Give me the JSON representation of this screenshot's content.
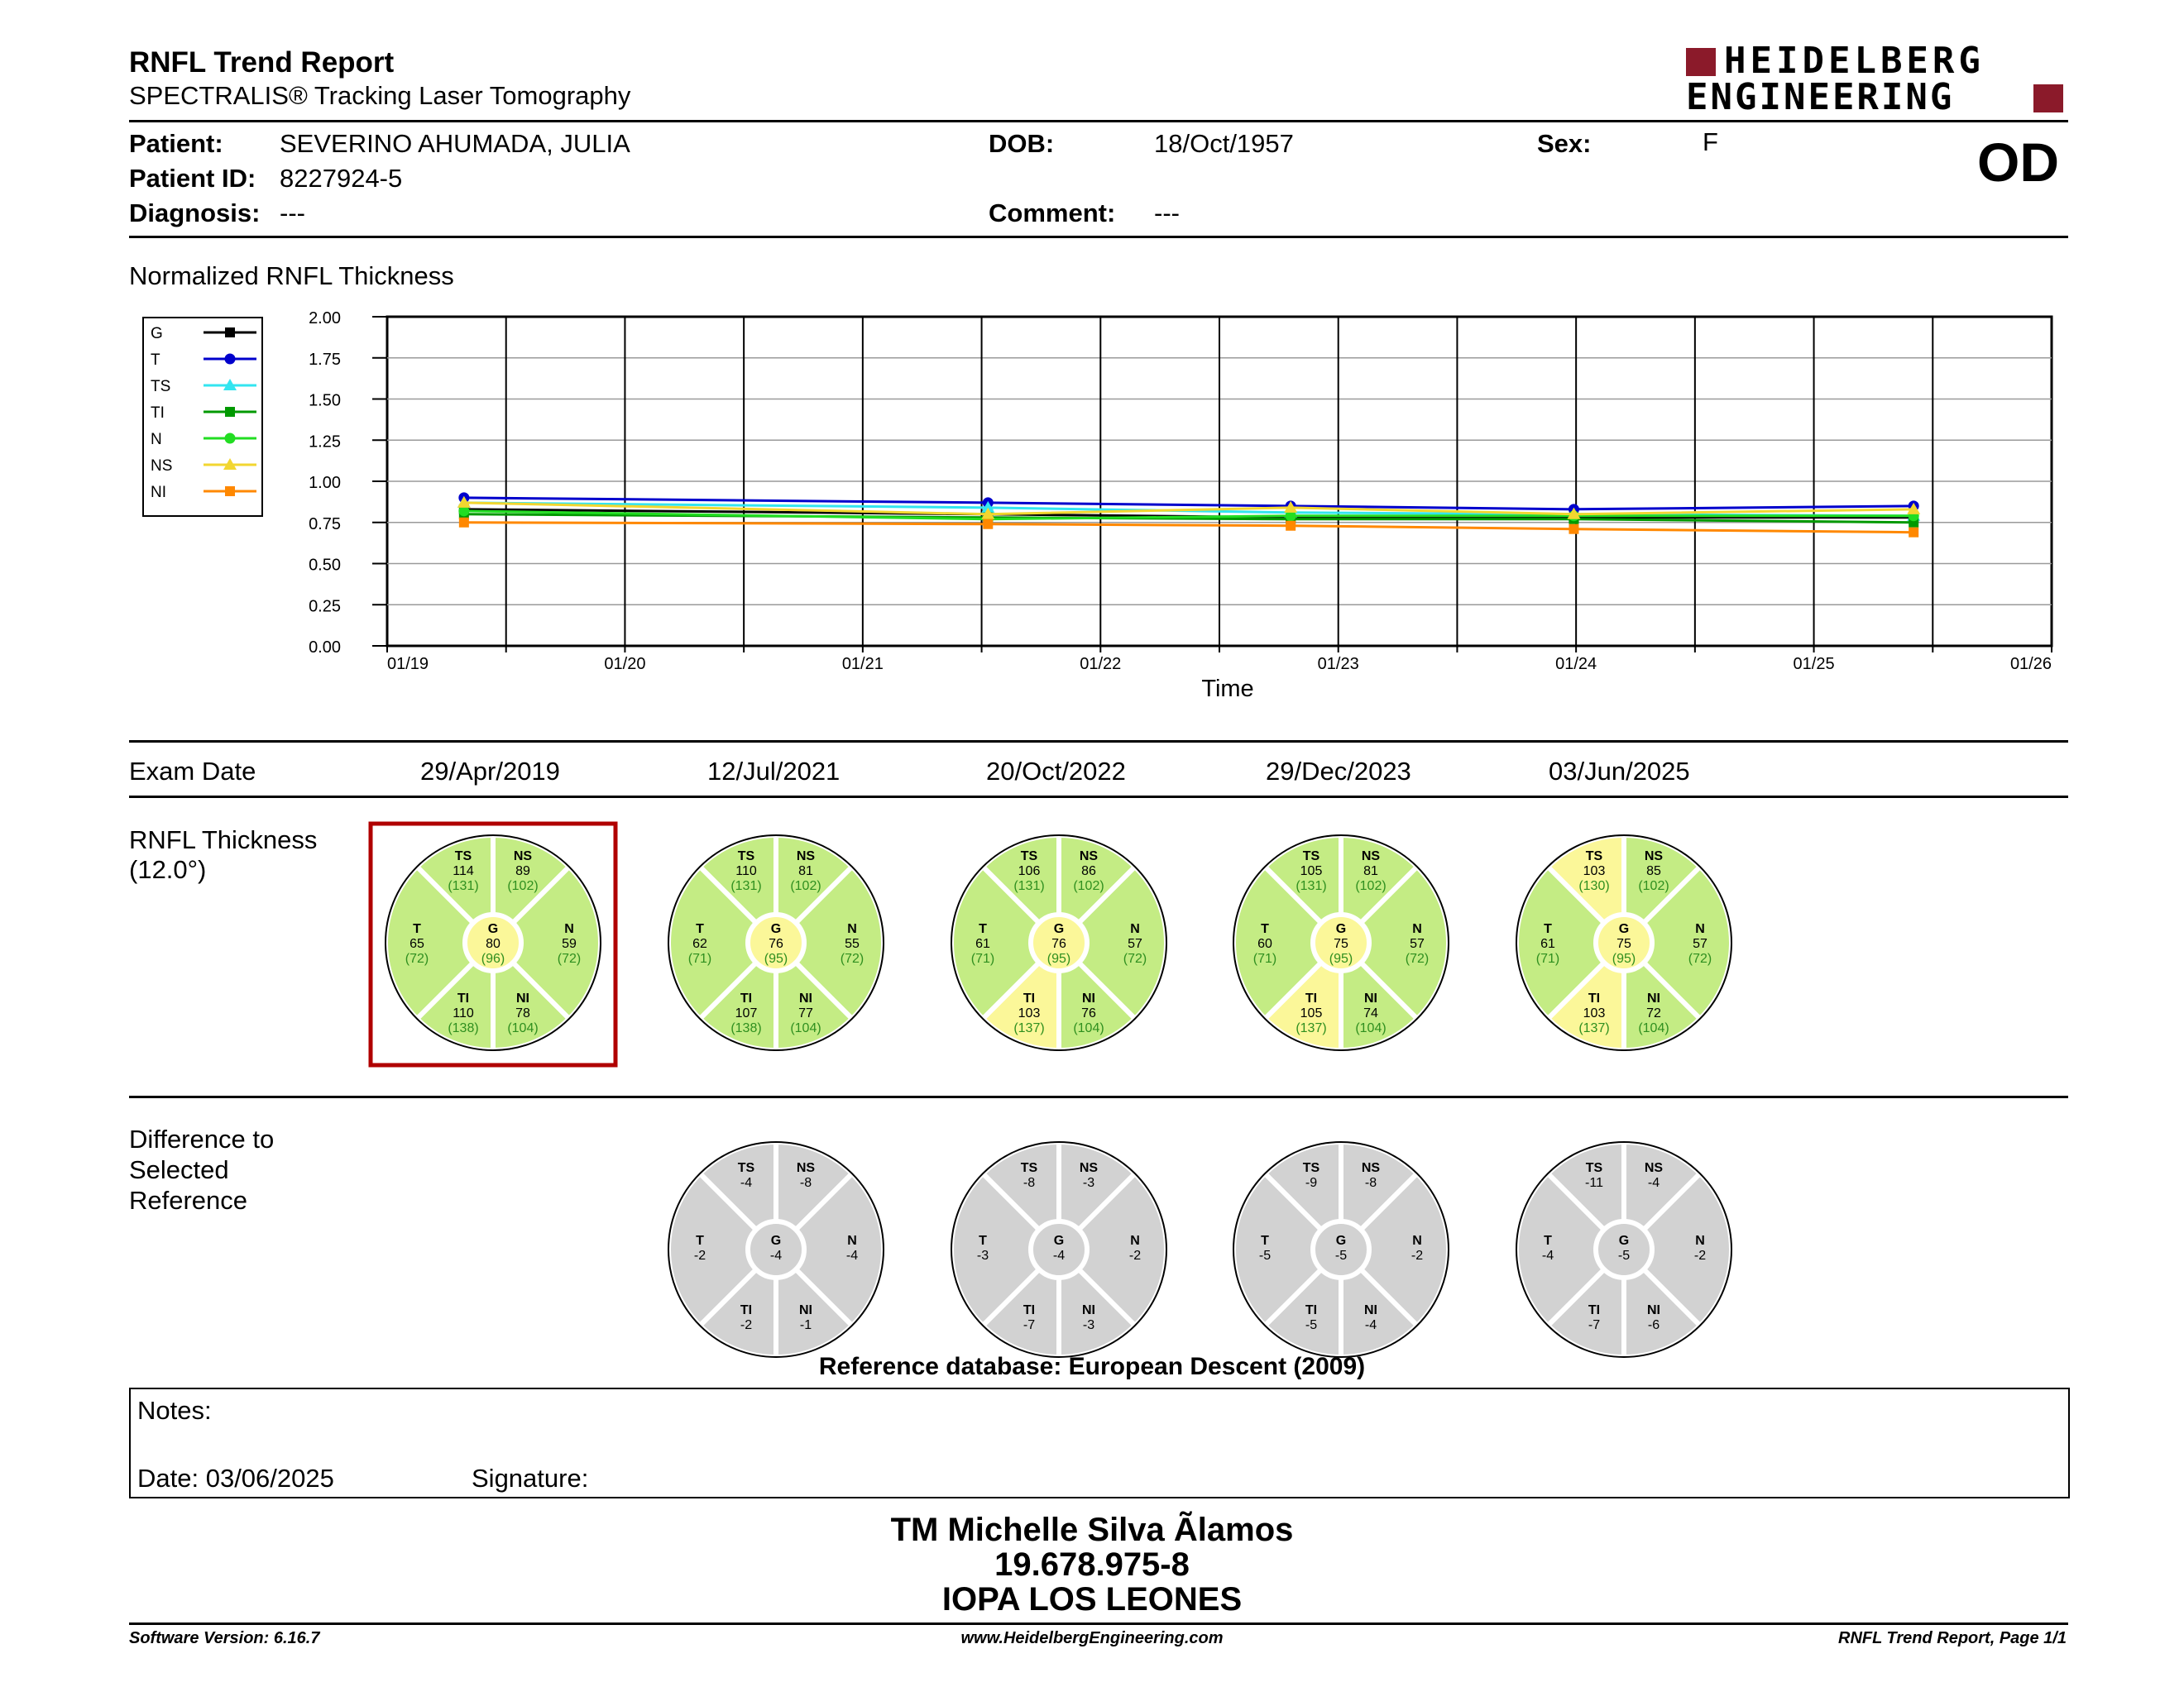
{
  "header": {
    "title": "RNFL Trend Report",
    "subtitle": "SPECTRALIS® Tracking Laser Tomography",
    "logo_line1": "HEIDELBERG",
    "logo_line2": "ENGINEERING",
    "eye": "OD"
  },
  "patient": {
    "patient_label": "Patient:",
    "patient_value": "SEVERINO AHUMADA, JULIA",
    "id_label": "Patient ID:",
    "id_value": "8227924-5",
    "diagnosis_label": "Diagnosis:",
    "diagnosis_value": "---",
    "dob_label": "DOB:",
    "dob_value": "18/Oct/1957",
    "comment_label": "Comment:",
    "comment_value": "---",
    "sex_label": "Sex:",
    "sex_value": "F"
  },
  "chart_data": {
    "type": "line",
    "title": "Normalized RNFL Thickness",
    "xlabel": "Time",
    "ylabel": "",
    "ylim": [
      0,
      2.0
    ],
    "yticks": [
      "0.00",
      "0.25",
      "0.50",
      "0.75",
      "1.00",
      "1.25",
      "1.50",
      "1.75",
      "2.00"
    ],
    "xticks": [
      "01/19",
      "01/20",
      "01/21",
      "01/22",
      "01/23",
      "01/24",
      "01/25",
      "01/26"
    ],
    "x": [
      "29/Apr/2019",
      "12/Jul/2021",
      "20/Oct/2022",
      "29/Dec/2023",
      "03/Jun/2025"
    ],
    "legend_position": "left",
    "grid": true,
    "series": [
      {
        "name": "G",
        "color": "#000000",
        "marker": "square",
        "values": [
          0.83,
          0.8,
          0.78,
          0.78,
          0.78
        ]
      },
      {
        "name": "T",
        "color": "#0000cc",
        "marker": "circle",
        "values": [
          0.9,
          0.87,
          0.85,
          0.83,
          0.85
        ]
      },
      {
        "name": "TS",
        "color": "#33e5f0",
        "marker": "triangle",
        "values": [
          0.87,
          0.84,
          0.81,
          0.8,
          0.79
        ]
      },
      {
        "name": "TI",
        "color": "#009900",
        "marker": "square",
        "values": [
          0.8,
          0.78,
          0.77,
          0.77,
          0.75
        ]
      },
      {
        "name": "N",
        "color": "#22dd22",
        "marker": "circle",
        "values": [
          0.82,
          0.77,
          0.79,
          0.79,
          0.79
        ]
      },
      {
        "name": "NS",
        "color": "#f2d630",
        "marker": "triangle",
        "values": [
          0.87,
          0.8,
          0.84,
          0.8,
          0.83
        ]
      },
      {
        "name": "NI",
        "color": "#ff8800",
        "marker": "square",
        "values": [
          0.75,
          0.74,
          0.73,
          0.71,
          0.69
        ]
      }
    ]
  },
  "exam": {
    "label": "Exam Date",
    "dates": [
      "29/Apr/2019",
      "12/Jul/2021",
      "20/Oct/2022",
      "29/Dec/2023",
      "03/Jun/2025"
    ]
  },
  "thickness": {
    "label_line1": "RNFL Thickness",
    "label_line2": "(12.0°)",
    "colors": {
      "green": "#c4ec84",
      "yellow": "#fbf799",
      "border": "#000000",
      "selected": "#b00000"
    },
    "circles": [
      {
        "selected": true,
        "TS": {
          "v": "114",
          "r": "(131)",
          "c": "green"
        },
        "NS": {
          "v": "89",
          "r": "(102)",
          "c": "green"
        },
        "T": {
          "v": "65",
          "r": "(72)",
          "c": "green"
        },
        "G": {
          "v": "80",
          "r": "(96)",
          "c": "yellow"
        },
        "N": {
          "v": "59",
          "r": "(72)",
          "c": "green"
        },
        "TI": {
          "v": "110",
          "r": "(138)",
          "c": "green"
        },
        "NI": {
          "v": "78",
          "r": "(104)",
          "c": "green"
        }
      },
      {
        "selected": false,
        "TS": {
          "v": "110",
          "r": "(131)",
          "c": "green"
        },
        "NS": {
          "v": "81",
          "r": "(102)",
          "c": "green"
        },
        "T": {
          "v": "62",
          "r": "(71)",
          "c": "green"
        },
        "G": {
          "v": "76",
          "r": "(95)",
          "c": "yellow"
        },
        "N": {
          "v": "55",
          "r": "(72)",
          "c": "green"
        },
        "TI": {
          "v": "107",
          "r": "(138)",
          "c": "green"
        },
        "NI": {
          "v": "77",
          "r": "(104)",
          "c": "green"
        }
      },
      {
        "selected": false,
        "TS": {
          "v": "106",
          "r": "(131)",
          "c": "green"
        },
        "NS": {
          "v": "86",
          "r": "(102)",
          "c": "green"
        },
        "T": {
          "v": "61",
          "r": "(71)",
          "c": "green"
        },
        "G": {
          "v": "76",
          "r": "(95)",
          "c": "yellow"
        },
        "N": {
          "v": "57",
          "r": "(72)",
          "c": "green"
        },
        "TI": {
          "v": "103",
          "r": "(137)",
          "c": "yellow"
        },
        "NI": {
          "v": "76",
          "r": "(104)",
          "c": "green"
        }
      },
      {
        "selected": false,
        "TS": {
          "v": "105",
          "r": "(131)",
          "c": "green"
        },
        "NS": {
          "v": "81",
          "r": "(102)",
          "c": "green"
        },
        "T": {
          "v": "60",
          "r": "(71)",
          "c": "green"
        },
        "G": {
          "v": "75",
          "r": "(95)",
          "c": "yellow"
        },
        "N": {
          "v": "57",
          "r": "(72)",
          "c": "green"
        },
        "TI": {
          "v": "105",
          "r": "(137)",
          "c": "yellow"
        },
        "NI": {
          "v": "74",
          "r": "(104)",
          "c": "green"
        }
      },
      {
        "selected": false,
        "TS": {
          "v": "103",
          "r": "(130)",
          "c": "yellow"
        },
        "NS": {
          "v": "85",
          "r": "(102)",
          "c": "green"
        },
        "T": {
          "v": "61",
          "r": "(71)",
          "c": "green"
        },
        "G": {
          "v": "75",
          "r": "(95)",
          "c": "yellow"
        },
        "N": {
          "v": "57",
          "r": "(72)",
          "c": "green"
        },
        "TI": {
          "v": "103",
          "r": "(137)",
          "c": "yellow"
        },
        "NI": {
          "v": "72",
          "r": "(104)",
          "c": "green"
        }
      }
    ]
  },
  "difference": {
    "label_line1": "Difference to",
    "label_line2": "Selected",
    "label_line3": "Reference",
    "color": "#d2d2d2",
    "circles": [
      {
        "TS": "-4",
        "NS": "-8",
        "T": "-2",
        "G": "-4",
        "N": "-4",
        "TI": "-2",
        "NI": "-1"
      },
      {
        "TS": "-8",
        "NS": "-3",
        "T": "-3",
        "G": "-4",
        "N": "-2",
        "TI": "-7",
        "NI": "-3"
      },
      {
        "TS": "-9",
        "NS": "-8",
        "T": "-5",
        "G": "-5",
        "N": "-2",
        "TI": "-5",
        "NI": "-4"
      },
      {
        "TS": "-11",
        "NS": "-4",
        "T": "-4",
        "G": "-5",
        "N": "-2",
        "TI": "-7",
        "NI": "-6"
      }
    ]
  },
  "sector_labels": {
    "TS": "TS",
    "NS": "NS",
    "T": "T",
    "G": "G",
    "N": "N",
    "TI": "TI",
    "NI": "NI"
  },
  "reference_db": "Reference database: European Descent (2009)",
  "notes": {
    "notes_label": "Notes:",
    "date_label": "Date: 03/06/2025",
    "signature_label": "Signature:"
  },
  "signature_block": {
    "name": "TM Michelle Silva Ãlamos",
    "rut": "19.678.975-8",
    "institution": "IOPA LOS LEONES"
  },
  "footer": {
    "software": "Software Version: 6.16.7",
    "website": "www.HeidelbergEngineering.com",
    "page": "RNFL Trend Report, Page 1/1"
  }
}
